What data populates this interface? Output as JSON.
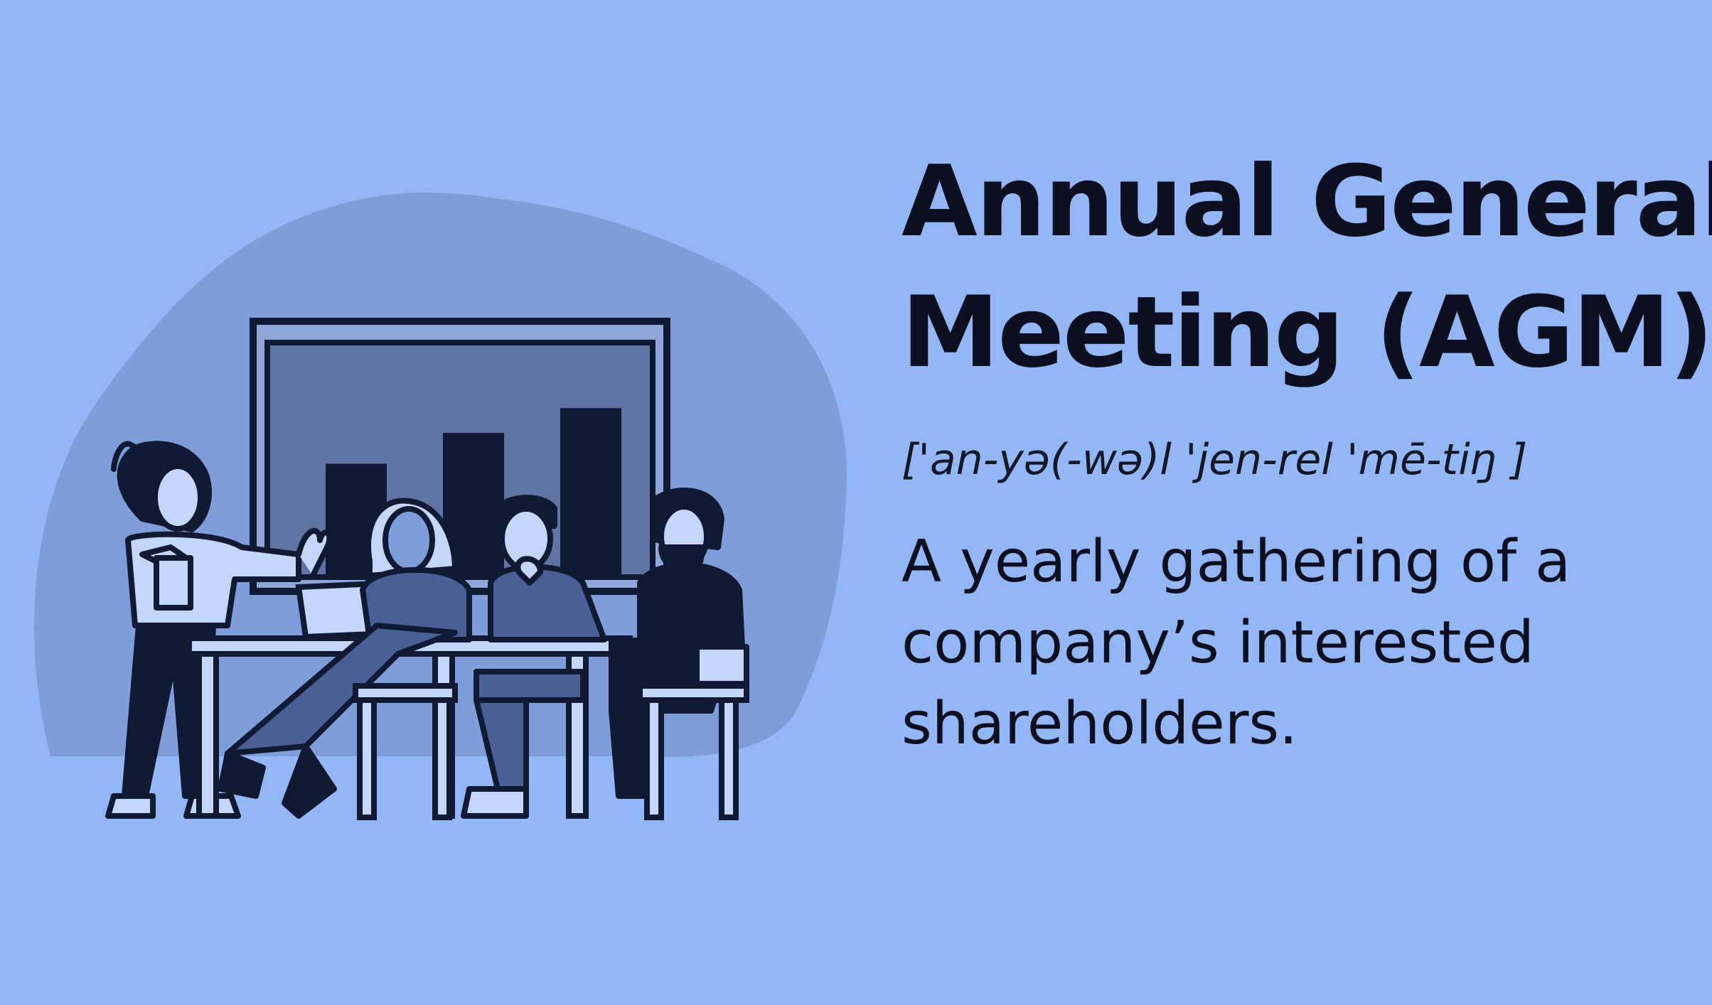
{
  "colors": {
    "background": "#93b7f6",
    "blob": "#7f9dd8",
    "ink": "#111a33",
    "screen": "#5f74a3",
    "light_fill": "#c4d6fb"
  },
  "illustration": {
    "subject": "people-in-meeting-icon",
    "screen_bars": [
      0.55,
      0.7,
      0.82
    ]
  },
  "term": {
    "line1": "Annual General",
    "line2": "Meeting (AGM)"
  },
  "pronunciation": "['an-yə(-wə)l 'jen-rel 'mē-tiŋ ]",
  "definition": "A yearly gathering of a company’s interested shareholders."
}
